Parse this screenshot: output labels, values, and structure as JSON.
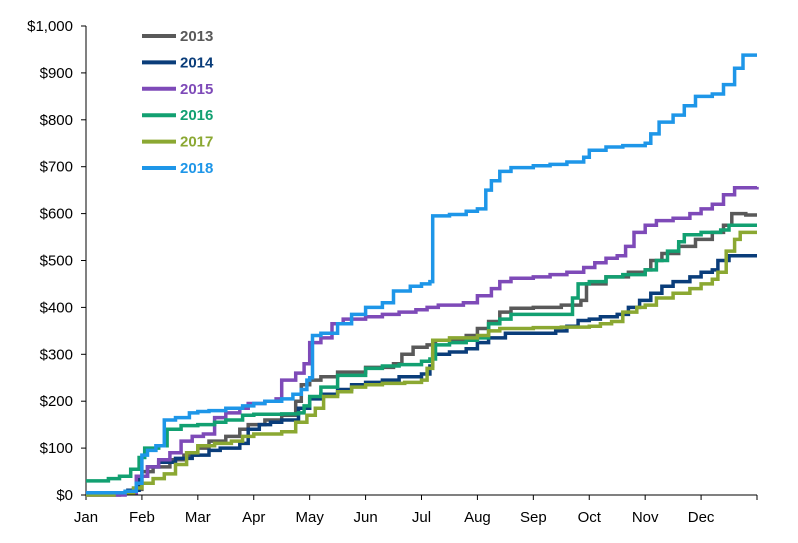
{
  "chart_data": {
    "type": "line",
    "title": "",
    "xlabel": "",
    "ylabel": "",
    "x_tick_labels": [
      "Jan",
      "Feb",
      "Mar",
      "Apr",
      "May",
      "Jun",
      "Jul",
      "Aug",
      "Sep",
      "Oct",
      "Nov",
      "Dec"
    ],
    "y_tick_labels": [
      "$0",
      "$100",
      "$200",
      "$300",
      "$400",
      "$500",
      "$600",
      "$700",
      "$800",
      "$900",
      "$1,000"
    ],
    "ylim": [
      0,
      1000
    ],
    "xlim": [
      0,
      12
    ],
    "grid": false,
    "legend_position": "top-left",
    "series": [
      {
        "name": "2013",
        "color": "#595959",
        "points": [
          [
            0,
            0
          ],
          [
            0.6,
            5
          ],
          [
            0.85,
            12
          ],
          [
            1.0,
            50
          ],
          [
            1.2,
            60
          ],
          [
            1.5,
            75
          ],
          [
            1.75,
            85
          ],
          [
            2.0,
            100
          ],
          [
            2.2,
            115
          ],
          [
            2.5,
            125
          ],
          [
            2.75,
            140
          ],
          [
            2.9,
            150
          ],
          [
            3.2,
            160
          ],
          [
            3.5,
            170
          ],
          [
            3.75,
            200
          ],
          [
            3.85,
            235
          ],
          [
            4.0,
            245
          ],
          [
            4.2,
            252
          ],
          [
            4.5,
            262
          ],
          [
            5.0,
            272
          ],
          [
            5.5,
            280
          ],
          [
            5.65,
            300
          ],
          [
            5.85,
            315
          ],
          [
            6.1,
            320
          ],
          [
            6.25,
            330
          ],
          [
            6.8,
            340
          ],
          [
            7.0,
            355
          ],
          [
            7.2,
            370
          ],
          [
            7.4,
            390
          ],
          [
            7.6,
            398
          ],
          [
            8.0,
            400
          ],
          [
            8.5,
            405
          ],
          [
            8.85,
            415
          ],
          [
            8.95,
            450
          ],
          [
            9.3,
            465
          ],
          [
            9.7,
            475
          ],
          [
            10.0,
            480
          ],
          [
            10.1,
            500
          ],
          [
            10.3,
            515
          ],
          [
            10.6,
            530
          ],
          [
            10.9,
            545
          ],
          [
            11.2,
            560
          ],
          [
            11.4,
            575
          ],
          [
            11.55,
            600
          ],
          [
            11.8,
            597
          ],
          [
            12.0,
            597
          ]
        ]
      },
      {
        "name": "2014",
        "color": "#0A3D7A",
        "points": [
          [
            0,
            5
          ],
          [
            0.75,
            10
          ],
          [
            0.95,
            40
          ],
          [
            1.1,
            60
          ],
          [
            1.3,
            70
          ],
          [
            1.6,
            78
          ],
          [
            1.9,
            85
          ],
          [
            2.0,
            85
          ],
          [
            2.2,
            95
          ],
          [
            2.4,
            100
          ],
          [
            2.75,
            110
          ],
          [
            2.9,
            140
          ],
          [
            3.1,
            150
          ],
          [
            3.3,
            155
          ],
          [
            3.5,
            160
          ],
          [
            3.8,
            185
          ],
          [
            4.0,
            205
          ],
          [
            4.2,
            215
          ],
          [
            4.5,
            225
          ],
          [
            4.75,
            235
          ],
          [
            5.0,
            240
          ],
          [
            5.3,
            245
          ],
          [
            5.6,
            252
          ],
          [
            6.0,
            258
          ],
          [
            6.15,
            275
          ],
          [
            6.2,
            300
          ],
          [
            6.5,
            305
          ],
          [
            6.8,
            312
          ],
          [
            7.0,
            325
          ],
          [
            7.2,
            335
          ],
          [
            7.5,
            345
          ],
          [
            8.0,
            345
          ],
          [
            8.4,
            350
          ],
          [
            8.6,
            360
          ],
          [
            8.8,
            372
          ],
          [
            9.0,
            375
          ],
          [
            9.2,
            380
          ],
          [
            9.5,
            385
          ],
          [
            9.7,
            400
          ],
          [
            9.9,
            415
          ],
          [
            10.1,
            430
          ],
          [
            10.3,
            445
          ],
          [
            10.5,
            455
          ],
          [
            10.8,
            465
          ],
          [
            11.0,
            475
          ],
          [
            11.2,
            480
          ],
          [
            11.3,
            500
          ],
          [
            11.5,
            510
          ],
          [
            12.0,
            510
          ]
        ]
      },
      {
        "name": "2015",
        "color": "#7E4AB8",
        "points": [
          [
            0,
            0
          ],
          [
            0.7,
            5
          ],
          [
            0.9,
            40
          ],
          [
            1.1,
            60
          ],
          [
            1.3,
            75
          ],
          [
            1.5,
            90
          ],
          [
            1.7,
            115
          ],
          [
            1.9,
            125
          ],
          [
            2.1,
            130
          ],
          [
            2.3,
            165
          ],
          [
            2.5,
            175
          ],
          [
            2.75,
            185
          ],
          [
            2.9,
            195
          ],
          [
            3.2,
            200
          ],
          [
            3.4,
            205
          ],
          [
            3.5,
            245
          ],
          [
            3.75,
            260
          ],
          [
            3.9,
            280
          ],
          [
            4.0,
            325
          ],
          [
            4.2,
            335
          ],
          [
            4.4,
            365
          ],
          [
            4.6,
            375
          ],
          [
            5.0,
            380
          ],
          [
            5.3,
            385
          ],
          [
            5.6,
            390
          ],
          [
            5.9,
            395
          ],
          [
            6.1,
            400
          ],
          [
            6.3,
            405
          ],
          [
            6.75,
            410
          ],
          [
            7.0,
            425
          ],
          [
            7.25,
            440
          ],
          [
            7.4,
            455
          ],
          [
            7.6,
            462
          ],
          [
            8.0,
            465
          ],
          [
            8.3,
            470
          ],
          [
            8.6,
            475
          ],
          [
            8.9,
            485
          ],
          [
            9.1,
            495
          ],
          [
            9.3,
            505
          ],
          [
            9.5,
            510
          ],
          [
            9.65,
            530
          ],
          [
            9.8,
            560
          ],
          [
            10.0,
            575
          ],
          [
            10.2,
            585
          ],
          [
            10.5,
            590
          ],
          [
            10.8,
            600
          ],
          [
            11.0,
            610
          ],
          [
            11.2,
            620
          ],
          [
            11.4,
            640
          ],
          [
            11.6,
            655
          ],
          [
            12.0,
            657
          ]
        ]
      },
      {
        "name": "2016",
        "color": "#12A071",
        "points": [
          [
            0,
            30
          ],
          [
            0.35,
            30
          ],
          [
            0.4,
            35
          ],
          [
            0.6,
            40
          ],
          [
            0.8,
            55
          ],
          [
            0.95,
            80
          ],
          [
            1.05,
            100
          ],
          [
            1.3,
            105
          ],
          [
            1.45,
            140
          ],
          [
            1.7,
            148
          ],
          [
            2.0,
            150
          ],
          [
            2.3,
            155
          ],
          [
            2.5,
            160
          ],
          [
            2.8,
            170
          ],
          [
            3.0,
            172
          ],
          [
            3.5,
            173
          ],
          [
            3.8,
            175
          ],
          [
            3.9,
            190
          ],
          [
            4.0,
            210
          ],
          [
            4.2,
            230
          ],
          [
            4.5,
            255
          ],
          [
            5.0,
            270
          ],
          [
            5.3,
            275
          ],
          [
            5.6,
            278
          ],
          [
            6.0,
            285
          ],
          [
            6.15,
            290
          ],
          [
            6.25,
            320
          ],
          [
            6.5,
            325
          ],
          [
            6.8,
            330
          ],
          [
            7.0,
            335
          ],
          [
            7.2,
            365
          ],
          [
            7.4,
            375
          ],
          [
            7.6,
            385
          ],
          [
            8.0,
            385
          ],
          [
            8.4,
            385
          ],
          [
            8.6,
            385
          ],
          [
            8.7,
            420
          ],
          [
            8.8,
            450
          ],
          [
            9.0,
            455
          ],
          [
            9.3,
            465
          ],
          [
            9.6,
            470
          ],
          [
            10.0,
            480
          ],
          [
            10.2,
            500
          ],
          [
            10.4,
            520
          ],
          [
            10.6,
            540
          ],
          [
            10.7,
            555
          ],
          [
            11.0,
            560
          ],
          [
            11.35,
            565
          ],
          [
            11.5,
            575
          ],
          [
            12.0,
            575
          ]
        ]
      },
      {
        "name": "2017",
        "color": "#8BA832",
        "points": [
          [
            0,
            0
          ],
          [
            0.5,
            5
          ],
          [
            0.85,
            15
          ],
          [
            1.0,
            25
          ],
          [
            1.2,
            35
          ],
          [
            1.4,
            45
          ],
          [
            1.6,
            65
          ],
          [
            1.8,
            90
          ],
          [
            2.0,
            105
          ],
          [
            2.3,
            110
          ],
          [
            2.6,
            115
          ],
          [
            2.8,
            125
          ],
          [
            3.0,
            130
          ],
          [
            3.2,
            130
          ],
          [
            3.5,
            135
          ],
          [
            3.75,
            155
          ],
          [
            3.95,
            170
          ],
          [
            4.1,
            185
          ],
          [
            4.25,
            210
          ],
          [
            4.5,
            220
          ],
          [
            4.75,
            230
          ],
          [
            5.0,
            235
          ],
          [
            5.3,
            238
          ],
          [
            5.7,
            240
          ],
          [
            6.0,
            245
          ],
          [
            6.1,
            270
          ],
          [
            6.2,
            330
          ],
          [
            6.5,
            335
          ],
          [
            7.0,
            340
          ],
          [
            7.2,
            350
          ],
          [
            7.4,
            355
          ],
          [
            8.0,
            357
          ],
          [
            8.5,
            358
          ],
          [
            9.0,
            360
          ],
          [
            9.2,
            365
          ],
          [
            9.4,
            370
          ],
          [
            9.6,
            390
          ],
          [
            9.85,
            400
          ],
          [
            10.0,
            405
          ],
          [
            10.2,
            420
          ],
          [
            10.5,
            430
          ],
          [
            10.8,
            440
          ],
          [
            11.0,
            450
          ],
          [
            11.2,
            460
          ],
          [
            11.3,
            475
          ],
          [
            11.45,
            520
          ],
          [
            11.6,
            545
          ],
          [
            11.7,
            560
          ],
          [
            12.0,
            560
          ]
        ]
      },
      {
        "name": "2018",
        "color": "#1E96E8",
        "points": [
          [
            0,
            5
          ],
          [
            0.4,
            5
          ],
          [
            0.7,
            8
          ],
          [
            0.9,
            25
          ],
          [
            1.0,
            85
          ],
          [
            1.1,
            95
          ],
          [
            1.25,
            105
          ],
          [
            1.4,
            160
          ],
          [
            1.6,
            165
          ],
          [
            1.85,
            175
          ],
          [
            2.0,
            178
          ],
          [
            2.2,
            180
          ],
          [
            2.5,
            185
          ],
          [
            2.8,
            190
          ],
          [
            3.0,
            195
          ],
          [
            3.2,
            200
          ],
          [
            3.5,
            205
          ],
          [
            3.7,
            215
          ],
          [
            3.85,
            225
          ],
          [
            3.95,
            245
          ],
          [
            4.0,
            250
          ],
          [
            4.05,
            340
          ],
          [
            4.2,
            345
          ],
          [
            4.5,
            365
          ],
          [
            4.75,
            385
          ],
          [
            5.0,
            400
          ],
          [
            5.3,
            410
          ],
          [
            5.5,
            435
          ],
          [
            5.8,
            445
          ],
          [
            6.0,
            450
          ],
          [
            6.15,
            455
          ],
          [
            6.2,
            595
          ],
          [
            6.5,
            598
          ],
          [
            6.8,
            605
          ],
          [
            7.0,
            610
          ],
          [
            7.15,
            650
          ],
          [
            7.25,
            670
          ],
          [
            7.4,
            690
          ],
          [
            7.6,
            698
          ],
          [
            8.0,
            702
          ],
          [
            8.3,
            705
          ],
          [
            8.6,
            710
          ],
          [
            8.9,
            720
          ],
          [
            9.0,
            735
          ],
          [
            9.3,
            742
          ],
          [
            9.6,
            745
          ],
          [
            10.0,
            750
          ],
          [
            10.1,
            770
          ],
          [
            10.25,
            795
          ],
          [
            10.5,
            810
          ],
          [
            10.7,
            830
          ],
          [
            10.9,
            850
          ],
          [
            11.2,
            855
          ],
          [
            11.4,
            875
          ],
          [
            11.6,
            910
          ],
          [
            11.75,
            938
          ],
          [
            12.0,
            938
          ]
        ]
      }
    ]
  }
}
